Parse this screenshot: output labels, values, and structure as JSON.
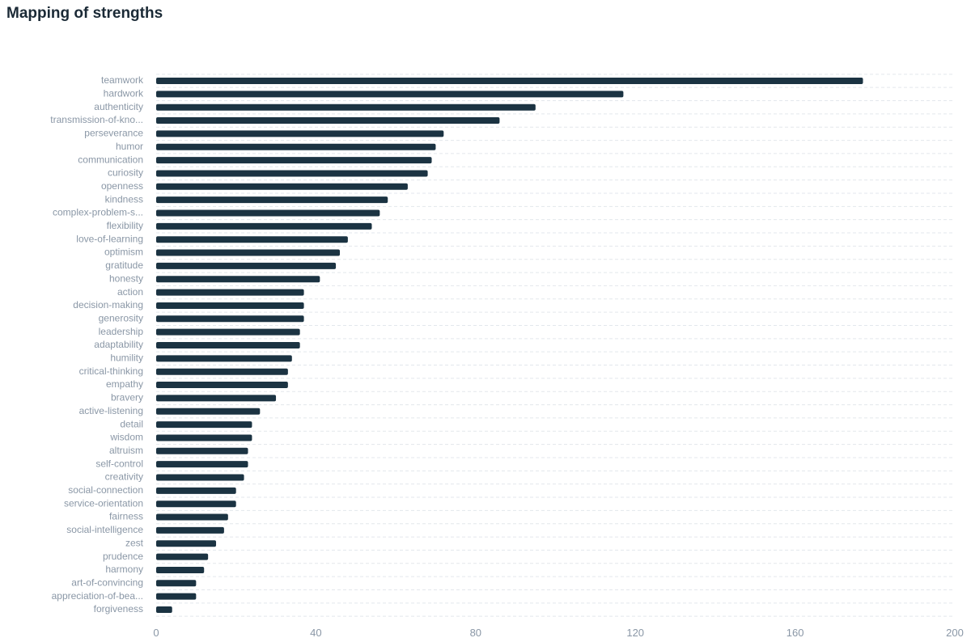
{
  "chart_data": {
    "type": "bar",
    "orientation": "horizontal",
    "title": "Mapping of strengths",
    "xlabel": "",
    "ylabel": "",
    "xlim": [
      0,
      200
    ],
    "x_ticks": [
      0,
      40,
      80,
      120,
      160,
      200
    ],
    "grid": true,
    "bar_color": "#1b3342",
    "categories": [
      "teamwork",
      "hardwork",
      "authenticity",
      "transmission-of-kno...",
      "perseverance",
      "humor",
      "communication",
      "curiosity",
      "openness",
      "kindness",
      "complex-problem-s...",
      "flexibility",
      "love-of-learning",
      "optimism",
      "gratitude",
      "honesty",
      "action",
      "decision-making",
      "generosity",
      "leadership",
      "adaptability",
      "humility",
      "critical-thinking",
      "empathy",
      "bravery",
      "active-listening",
      "detail",
      "wisdom",
      "altruism",
      "self-control",
      "creativity",
      "social-connection",
      "service-orientation",
      "fairness",
      "social-intelligence",
      "zest",
      "prudence",
      "harmony",
      "art-of-convincing",
      "appreciation-of-bea...",
      "forgiveness"
    ],
    "values": [
      177,
      117,
      95,
      86,
      72,
      70,
      69,
      68,
      63,
      58,
      56,
      54,
      48,
      46,
      45,
      41,
      37,
      37,
      37,
      36,
      36,
      34,
      33,
      33,
      30,
      26,
      24,
      24,
      23,
      23,
      22,
      20,
      20,
      18,
      17,
      15,
      13,
      12,
      10,
      10,
      4
    ]
  }
}
